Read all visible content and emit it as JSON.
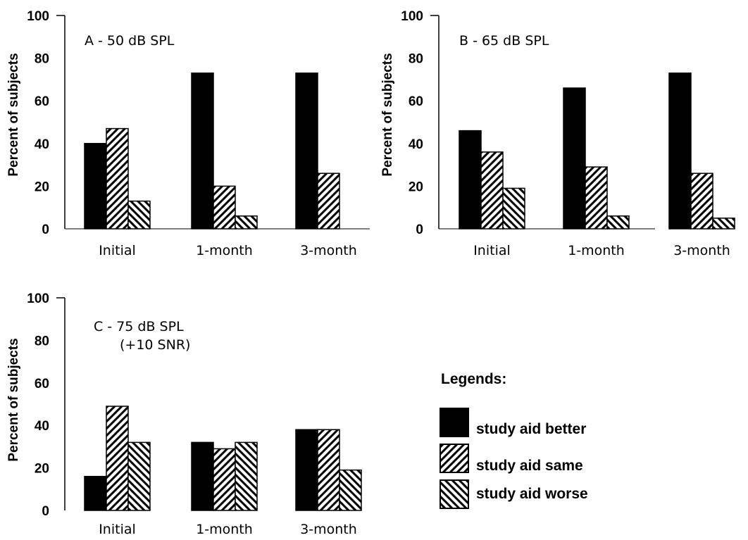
{
  "chart_data": [
    {
      "type": "bar",
      "title": "A - 50 dB SPL",
      "subtitle": "",
      "ylabel": "Percent of subjects",
      "categories": [
        "Initial",
        "1-month",
        "3-month"
      ],
      "yticks": [
        "0",
        "20",
        "40",
        "60",
        "80",
        "100"
      ],
      "ylim": [
        0,
        100
      ],
      "series": [
        {
          "name": "study aid better",
          "values": [
            40,
            73,
            73
          ]
        },
        {
          "name": "study aid same",
          "values": [
            47,
            20,
            26
          ]
        },
        {
          "name": "study aid worse",
          "values": [
            13,
            6,
            0
          ]
        }
      ]
    },
    {
      "type": "bar",
      "title": "B - 65 dB SPL",
      "subtitle": "",
      "ylabel": "Percent of subjects",
      "categories": [
        "Initial",
        "1-month",
        "3-month"
      ],
      "yticks": [
        "0",
        "20",
        "40",
        "60",
        "80",
        "100"
      ],
      "ylim": [
        0,
        100
      ],
      "series": [
        {
          "name": "study aid better",
          "values": [
            46,
            66,
            73
          ]
        },
        {
          "name": "study aid same",
          "values": [
            36,
            29,
            26
          ]
        },
        {
          "name": "study aid worse",
          "values": [
            19,
            6,
            5
          ]
        }
      ]
    },
    {
      "type": "bar",
      "title": "C - 75 dB SPL",
      "subtitle": "(+10 SNR)",
      "ylabel": "Percent of subjects",
      "categories": [
        "Initial",
        "1-month",
        "3-month"
      ],
      "yticks": [
        "0",
        "20",
        "40",
        "60",
        "80",
        "100"
      ],
      "ylim": [
        0,
        100
      ],
      "series": [
        {
          "name": "study aid better",
          "values": [
            16,
            32,
            38
          ]
        },
        {
          "name": "study aid same",
          "values": [
            49,
            29,
            38
          ]
        },
        {
          "name": "study aid worse",
          "values": [
            32,
            32,
            19
          ]
        }
      ]
    }
  ],
  "legend": {
    "title": "Legends:",
    "items": [
      {
        "label": "study aid better",
        "fill": "solid"
      },
      {
        "label": "study aid same",
        "fill": "hatch-forward"
      },
      {
        "label": "study aid worse",
        "fill": "hatch-back"
      }
    ]
  },
  "colors": {
    "bar": "#000000",
    "background": "#ffffff"
  }
}
